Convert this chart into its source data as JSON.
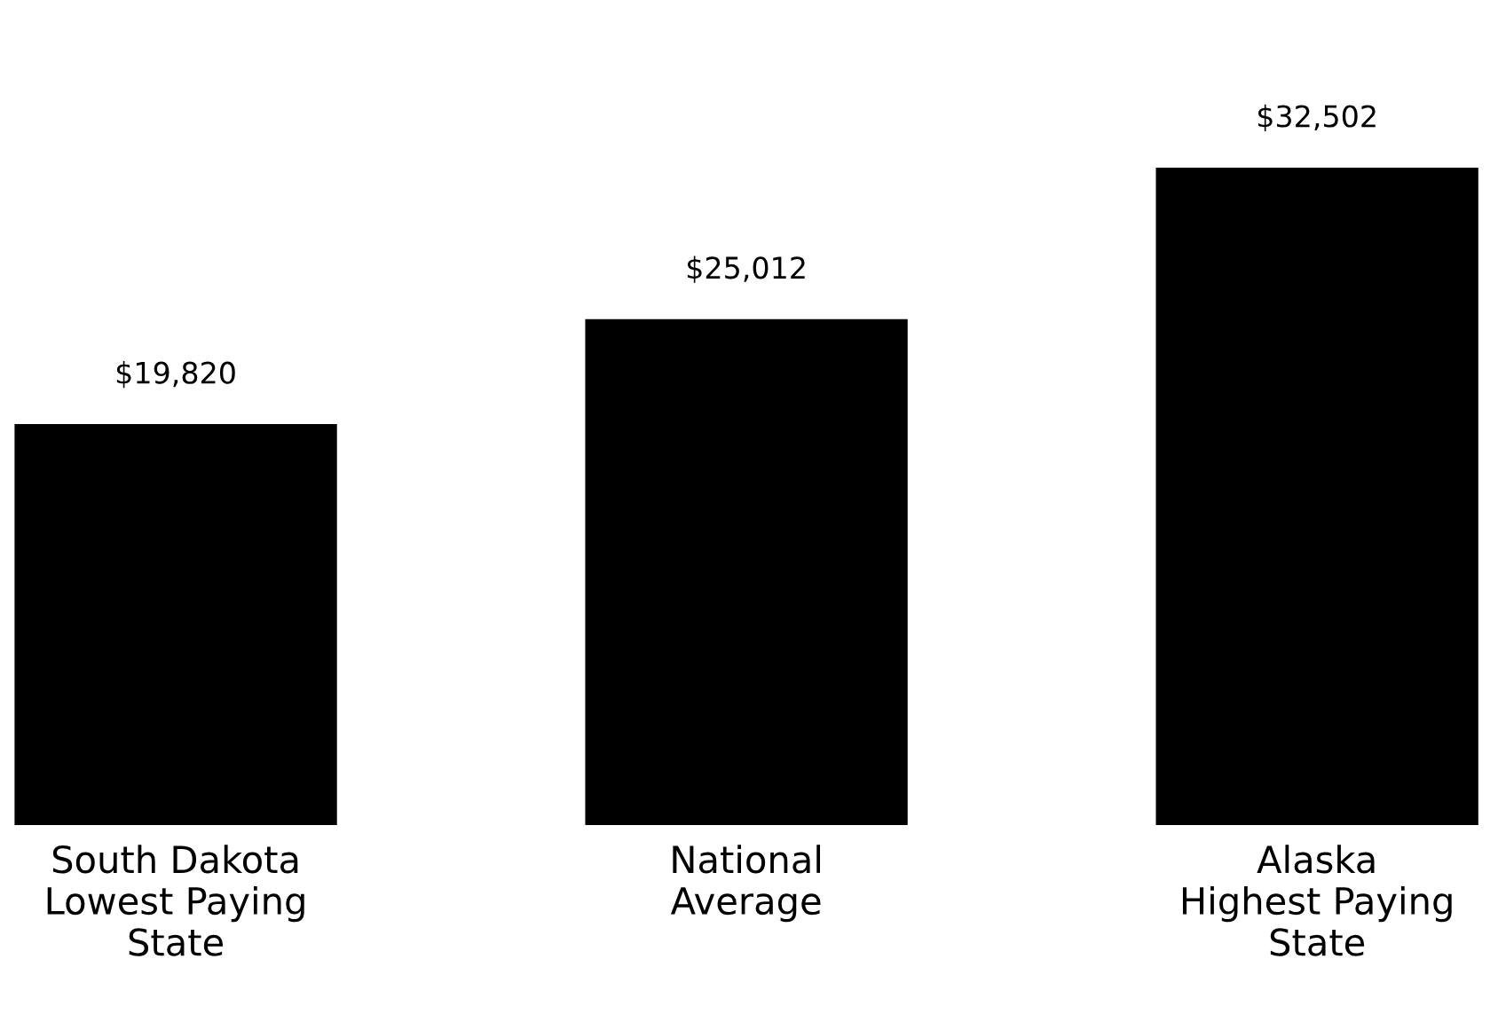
{
  "chart_data": {
    "type": "bar",
    "categories": [
      "South Dakota\nLowest Paying\nState",
      "National\nAverage",
      "Alaska\nHighest Paying\nState"
    ],
    "values": [
      19820,
      25012,
      32502
    ],
    "color": "#000000",
    "value_labels": [
      "$19,820",
      "$25,012",
      "$32,502"
    ],
    "grid": false,
    "legend": false
  }
}
